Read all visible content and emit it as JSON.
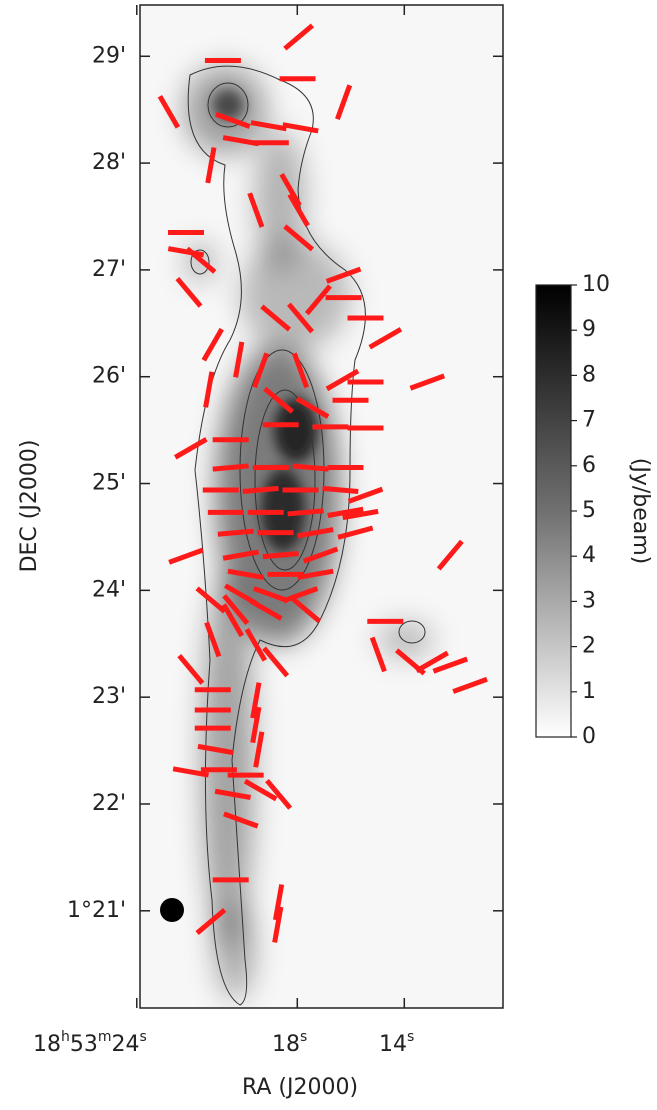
{
  "chart_data": {
    "type": "polarization-map",
    "xlabel": "RA (J2000)",
    "ylabel": "DEC (J2000)",
    "xlim": [
      23.88,
      10.31
    ],
    "ylim": [
      20.09,
      29.48
    ],
    "xticks": [
      {
        "value": 24,
        "label": "18h53m24s"
      },
      {
        "value": 18,
        "label": "18s"
      },
      {
        "value": 14,
        "label": "14s"
      }
    ],
    "yticks": [
      {
        "value": 21,
        "label": "1°21'"
      },
      {
        "value": 22,
        "label": "22'"
      },
      {
        "value": 23,
        "label": "23'"
      },
      {
        "value": 24,
        "label": "24'"
      },
      {
        "value": 25,
        "label": "25'"
      },
      {
        "value": 26,
        "label": "26'"
      },
      {
        "value": 27,
        "label": "27'"
      },
      {
        "value": 28,
        "label": "28'"
      },
      {
        "value": 29,
        "label": "29'"
      }
    ],
    "colorbar": {
      "label": "(Jy/beam)",
      "lim": [
        0,
        10
      ],
      "ticks": [
        0,
        1,
        2,
        3,
        4,
        5,
        6,
        7,
        8,
        9,
        10
      ]
    },
    "vectors": {
      "color": "#ff1a1a",
      "x": [
        20.78,
        17.95,
        17.99,
        16.27,
        22.8,
        20.41,
        19.07,
        17.88,
        20.11,
        18.99,
        21.23,
        19.55,
        18.25,
        17.95,
        17.95,
        22.16,
        22.16,
        21.6,
        22.05,
        16.27,
        16.27,
        17.21,
        18.81,
        17.88,
        15.45,
        14.71,
        21.16,
        20.19,
        19.37,
        17.88,
        16.31,
        15.45,
        13.14,
        21.31,
        16.01,
        18.7,
        17.43,
        21.98,
        20.49,
        18.62,
        16.76,
        15.45,
        20.49,
        18.99,
        17.5,
        16.2,
        20.86,
        19.37,
        17.88,
        16.39,
        20.67,
        19.18,
        17.69,
        16.2,
        20.3,
        18.81,
        17.32,
        15.83,
        20.11,
        18.62,
        17.13,
        19.93,
        18.44,
        17.32,
        20.11,
        18.99,
        17.88,
        20.3,
        19.18,
        17.69,
        22.16,
        21.23,
        15.45,
        15.64,
        12.28,
        14.71,
        14.97,
        13.77,
        12.96,
        12.28,
        11.54,
        21.16,
        20.41,
        19.55,
        18.81,
        21.98,
        21.16,
        21.16,
        21.16,
        21.05,
        19.55,
        19.55,
        19.44,
        21.98,
        20.93,
        19.93,
        20.41,
        19.37,
        18.7,
        20.11,
        20.49,
        21.23,
        18.7,
        18.73
      ],
      "y": [
        28.96,
        29.18,
        28.79,
        28.57,
        28.48,
        28.4,
        28.35,
        28.33,
        28.21,
        28.19,
        27.98,
        27.56,
        27.75,
        27.56,
        27.3,
        27.35,
        27.17,
        27.09,
        26.79,
        26.95,
        26.74,
        26.72,
        26.55,
        26.55,
        26.55,
        26.36,
        26.3,
        26.16,
        26.06,
        26.06,
        25.97,
        25.95,
        25.95,
        25.88,
        25.78,
        25.78,
        25.71,
        25.33,
        25.41,
        25.55,
        25.53,
        25.52,
        25.15,
        25.15,
        25.15,
        25.15,
        24.94,
        24.94,
        24.94,
        24.94,
        24.73,
        24.73,
        24.73,
        24.73,
        24.54,
        24.54,
        24.54,
        24.54,
        24.33,
        24.33,
        24.33,
        24.15,
        24.15,
        24.15,
        23.96,
        23.96,
        23.96,
        23.82,
        23.82,
        23.82,
        24.32,
        23.91,
        24.89,
        24.71,
        24.33,
        23.71,
        23.4,
        23.33,
        23.33,
        23.3,
        23.11,
        23.54,
        23.72,
        23.49,
        23.33,
        23.26,
        23.07,
        22.88,
        22.71,
        22.51,
        22.97,
        22.74,
        22.51,
        22.3,
        22.32,
        22.27,
        22.09,
        22.13,
        22.09,
        21.85,
        21.29,
        20.9,
        21.08,
        20.87
      ],
      "angle": [
        0,
        40,
        0,
        70,
        -60,
        -20,
        -10,
        -10,
        -10,
        0,
        80,
        -70,
        -60,
        -60,
        -40,
        0,
        -10,
        -40,
        -50,
        20,
        0,
        50,
        -40,
        -50,
        0,
        30,
        60,
        80,
        70,
        -70,
        30,
        0,
        20,
        80,
        0,
        -40,
        -30,
        30,
        0,
        0,
        0,
        0,
        5,
        0,
        -5,
        0,
        0,
        5,
        0,
        -5,
        0,
        0,
        5,
        10,
        5,
        0,
        10,
        15,
        10,
        5,
        20,
        -10,
        0,
        10,
        -30,
        -20,
        20,
        -50,
        -30,
        -40,
        20,
        -40,
        20,
        10,
        50,
        0,
        -70,
        -40,
        30,
        20,
        20,
        -70,
        -60,
        -60,
        -50,
        -50,
        0,
        0,
        0,
        -10,
        80,
        80,
        80,
        -10,
        0,
        0,
        -10,
        -30,
        -50,
        -20,
        0,
        40,
        80,
        80
      ]
    }
  }
}
